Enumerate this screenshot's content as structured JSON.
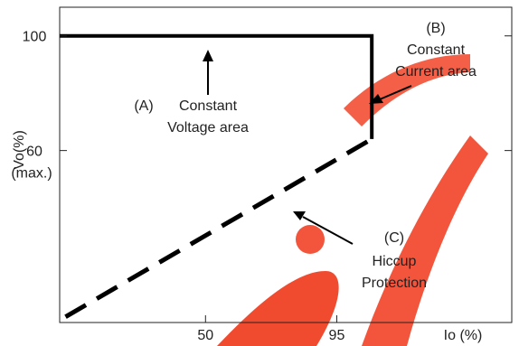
{
  "chart_data": {
    "type": "line",
    "xlabel": "Io (%)",
    "ylabel": "Vo(%)",
    "xticks": [
      {
        "value": 50,
        "label": "50"
      },
      {
        "value": 95,
        "label": "95"
      }
    ],
    "yticks": [
      {
        "value": 100,
        "label": "100"
      },
      {
        "value": 60,
        "label": "60"
      }
    ],
    "ytick_sublabel": "(max.)",
    "xlim": [
      0,
      155
    ],
    "ylim": [
      0,
      110
    ],
    "grid": false,
    "series": [
      {
        "style": "solid",
        "x": [
          0,
          107,
          107,
          107
        ],
        "y": [
          100,
          100,
          64,
          64
        ]
      },
      {
        "style": "dashed",
        "x": [
          2,
          107
        ],
        "y": [
          2,
          64
        ]
      }
    ],
    "annotations": [
      {
        "id": "A",
        "tag": "(A)",
        "lines": [
          "Constant",
          "Voltage area"
        ]
      },
      {
        "id": "B",
        "tag": "(B)",
        "lines": [
          "Constant",
          "Current area"
        ]
      },
      {
        "id": "C",
        "tag": "(C)",
        "lines": [
          "Hiccup",
          "Protection"
        ]
      }
    ],
    "colors": {
      "line": "#000000",
      "axis": "#222222",
      "watermark": "#ee2200"
    }
  }
}
